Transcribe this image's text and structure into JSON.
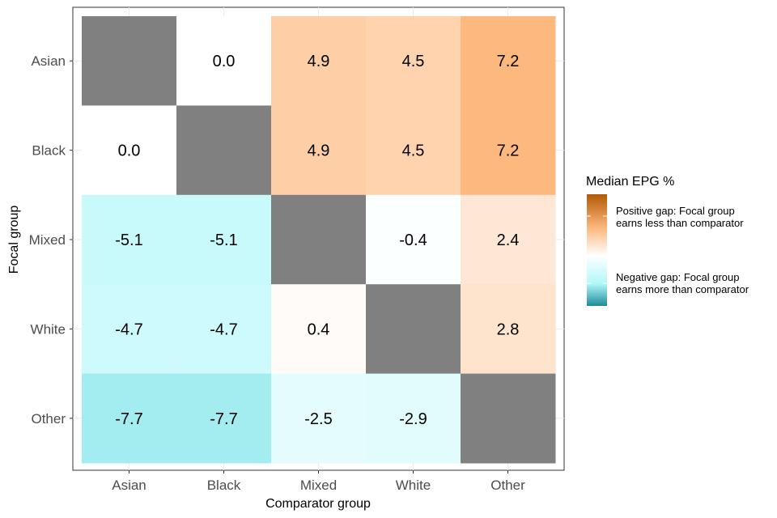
{
  "chart_data": {
    "type": "heatmap",
    "xlabel": "Comparator group",
    "ylabel": "Focal group",
    "x_categories": [
      "Asian",
      "Black",
      "Mixed",
      "White",
      "Other"
    ],
    "y_categories": [
      "Asian",
      "Black",
      "Mixed",
      "White",
      "Other"
    ],
    "values": [
      [
        null,
        0.0,
        4.9,
        4.5,
        7.2
      ],
      [
        0.0,
        null,
        4.9,
        4.5,
        7.2
      ],
      [
        -5.1,
        -5.1,
        null,
        -0.4,
        2.4
      ],
      [
        -4.7,
        -4.7,
        0.4,
        null,
        2.8
      ],
      [
        -7.7,
        -7.7,
        -2.5,
        -2.9,
        null
      ]
    ],
    "legend": {
      "title": "Median EPG %",
      "positive_label_line1": "Positive gap: Focal group",
      "positive_label_line2": "earns less than comparator",
      "negative_label_line1": "Negative gap: Focal group",
      "negative_label_line2": "earns more than comparator"
    },
    "colors": {
      "diagonal": "#808080",
      "high": "#b35806",
      "mid_high": "#fdb87e",
      "mid": "#ffffff",
      "mid_low": "#b2f7fa",
      "low": "#1e8c99"
    }
  }
}
